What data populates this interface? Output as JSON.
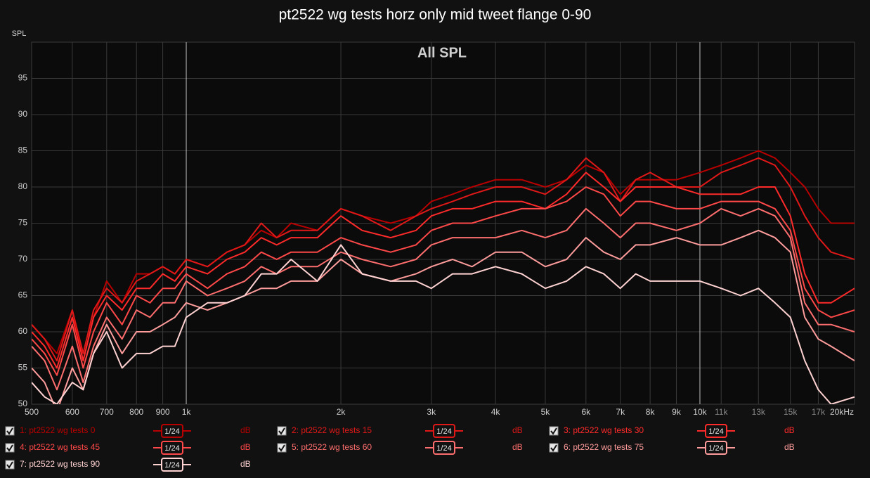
{
  "chart_data": {
    "type": "line",
    "title": "pt2522 wg tests horz only mid tweet flange 0-90",
    "subtitle": "All SPL",
    "y_label": "SPL",
    "logx": true,
    "grid": true,
    "smoothing": "1/24",
    "unit": "dB",
    "x": [
      500,
      530,
      560,
      600,
      630,
      660,
      700,
      750,
      800,
      850,
      900,
      950,
      1000,
      1100,
      1200,
      1300,
      1400,
      1500,
      1600,
      1800,
      2000,
      2200,
      2500,
      2800,
      3000,
      3300,
      3600,
      4000,
      4500,
      5000,
      5500,
      6000,
      6500,
      7000,
      7500,
      8000,
      9000,
      10000,
      11000,
      12000,
      13000,
      14000,
      15000,
      16000,
      17000,
      18000,
      20000
    ],
    "xlim": [
      500,
      20000
    ],
    "xticks": [
      500,
      600,
      700,
      800,
      900,
      {
        "value": 1000,
        "label": "1k"
      },
      {
        "value": 2000,
        "label": "2k"
      },
      {
        "value": 3000,
        "label": "3k"
      },
      {
        "value": 4000,
        "label": "4k"
      },
      {
        "value": 5000,
        "label": "5k"
      },
      {
        "value": 6000,
        "label": "6k"
      },
      {
        "value": 7000,
        "label": "7k"
      },
      {
        "value": 8000,
        "label": "8k"
      },
      {
        "value": 9000,
        "label": "9k"
      },
      {
        "value": 10000,
        "label": "10k"
      },
      {
        "value": 11000,
        "label": "11k"
      },
      {
        "value": 13000,
        "label": "13k"
      },
      {
        "value": 15000,
        "label": "15k"
      },
      {
        "value": 17000,
        "label": "17k"
      },
      {
        "value": 20000,
        "label": "20kHz"
      }
    ],
    "ylim": [
      50,
      100
    ],
    "yticks": [
      50,
      55,
      60,
      65,
      70,
      75,
      80,
      85,
      90,
      95
    ],
    "series": [
      {
        "name": "1: pt2522 wg tests 0",
        "color": "#b80000",
        "values": [
          61,
          59,
          57,
          63,
          56,
          62,
          67,
          64,
          68,
          68,
          69,
          68,
          70,
          69,
          71,
          72,
          74,
          73,
          75,
          74,
          77,
          76,
          75,
          76,
          78,
          79,
          80,
          81,
          81,
          80,
          81,
          83,
          82,
          79,
          81,
          81,
          81,
          82,
          83,
          84,
          85,
          84,
          82,
          80,
          77,
          75,
          75
        ]
      },
      {
        "name": "2: pt2522 wg tests 15",
        "color": "#e01818",
        "values": [
          61,
          59,
          56,
          63,
          57,
          63,
          66,
          64,
          67,
          68,
          69,
          68,
          70,
          69,
          71,
          72,
          75,
          73,
          74,
          74,
          77,
          76,
          74,
          76,
          77,
          78,
          79,
          80,
          80,
          79,
          81,
          84,
          82,
          78,
          81,
          82,
          80,
          80,
          82,
          83,
          84,
          83,
          80,
          76,
          73,
          71,
          70
        ]
      },
      {
        "name": "3: pt2522 wg tests 30",
        "color": "#ff2a2a",
        "values": [
          60,
          58,
          55,
          62,
          56,
          62,
          65,
          63,
          66,
          66,
          68,
          67,
          69,
          68,
          70,
          71,
          73,
          72,
          73,
          73,
          76,
          74,
          73,
          74,
          76,
          77,
          77,
          78,
          78,
          77,
          79,
          82,
          80,
          78,
          80,
          80,
          80,
          79,
          79,
          79,
          80,
          80,
          76,
          68,
          64,
          64,
          66
        ]
      },
      {
        "name": "4: pt2522 wg tests 45",
        "color": "#ff4848",
        "values": [
          59,
          57,
          54,
          61,
          55,
          60,
          64,
          61,
          65,
          64,
          66,
          66,
          68,
          66,
          68,
          69,
          71,
          70,
          71,
          71,
          73,
          72,
          71,
          72,
          74,
          75,
          75,
          76,
          77,
          77,
          78,
          80,
          79,
          76,
          78,
          78,
          77,
          77,
          78,
          78,
          78,
          77,
          74,
          66,
          63,
          62,
          63
        ]
      },
      {
        "name": "5: pt2522 wg tests 60",
        "color": "#ff6e6e",
        "values": [
          58,
          56,
          52,
          58,
          53,
          58,
          62,
          59,
          63,
          62,
          64,
          64,
          67,
          65,
          66,
          67,
          69,
          68,
          69,
          69,
          71,
          70,
          69,
          70,
          72,
          73,
          73,
          73,
          74,
          73,
          74,
          77,
          75,
          73,
          75,
          75,
          74,
          75,
          77,
          76,
          77,
          76,
          73,
          64,
          61,
          61,
          60
        ]
      },
      {
        "name": "6: pt2522 wg tests 75",
        "color": "#ff9c9c",
        "values": [
          55,
          53,
          49,
          55,
          52,
          57,
          61,
          57,
          60,
          60,
          61,
          62,
          64,
          63,
          64,
          65,
          66,
          66,
          67,
          67,
          70,
          68,
          67,
          68,
          69,
          70,
          69,
          71,
          71,
          69,
          70,
          73,
          71,
          70,
          72,
          72,
          73,
          72,
          72,
          73,
          74,
          73,
          71,
          62,
          59,
          58,
          56
        ]
      },
      {
        "name": "7: pt2522 wg tests 90",
        "color": "#ffd2d2",
        "values": [
          53,
          51,
          50,
          53,
          52,
          57,
          60,
          55,
          57,
          57,
          58,
          58,
          62,
          64,
          64,
          65,
          68,
          68,
          70,
          67,
          72,
          68,
          67,
          67,
          66,
          68,
          68,
          69,
          68,
          66,
          67,
          69,
          68,
          66,
          68,
          67,
          67,
          67,
          66,
          65,
          66,
          64,
          62,
          56,
          52,
          50,
          51
        ]
      }
    ]
  }
}
